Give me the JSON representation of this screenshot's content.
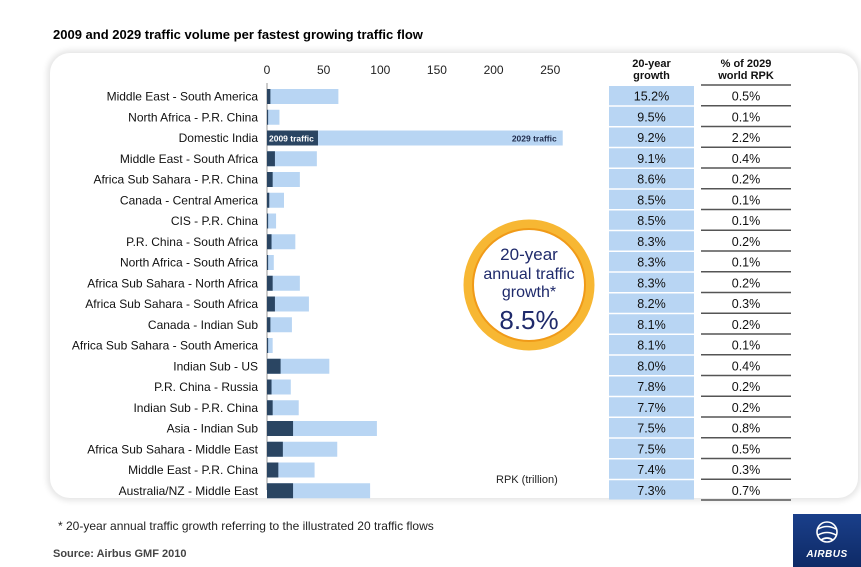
{
  "title": "2009 and 2029 traffic volume per fastest growing traffic flow",
  "footnote": "* 20-year annual traffic growth referring to the illustrated 20 traffic flows",
  "source": "Source: Airbus GMF 2010",
  "logo_text": "AIRBUS",
  "colors": {
    "bar2009": "#2a4562",
    "bar2029": "#b8d5f3",
    "cell": "#b8d5f3",
    "ring": "#f5a623"
  },
  "chart_data": {
    "type": "bar",
    "orientation": "horizontal",
    "x_ticks": [
      0,
      50,
      100,
      150,
      200,
      250
    ],
    "xlim": [
      0,
      260
    ],
    "x_unit_label": "RPK (trillion)",
    "bar_labels": {
      "traffic_2009": "2009 traffic",
      "traffic_2029": "2029 traffic"
    },
    "categories": [
      "Middle East - South America",
      "North Africa - P.R. China",
      "Domestic India",
      "Middle East - South Africa",
      "Africa Sub Sahara - P.R. China",
      "Canada - Central America",
      "CIS - P.R. China",
      "P.R. China - South Africa",
      "North Africa - South Africa",
      "Africa Sub Sahara - North Africa",
      "Africa Sub Sahara - South Africa",
      "Canada - Indian Sub",
      "Africa Sub Sahara - South America",
      "Indian Sub - US",
      "P.R. China - Russia",
      "Indian Sub - P.R. China",
      "Asia - Indian Sub",
      "Africa Sub Sahara - Middle East",
      "Middle East - P.R. China",
      "Australia/NZ - Middle East"
    ],
    "series": [
      {
        "name": "2009 traffic",
        "values": [
          3,
          1,
          45,
          7,
          5,
          2,
          1,
          4,
          1,
          5,
          7,
          3,
          1,
          12,
          4,
          5,
          23,
          14,
          10,
          23
        ]
      },
      {
        "name": "2029 traffic",
        "values": [
          63,
          11,
          261,
          44,
          29,
          15,
          8,
          25,
          6,
          29,
          37,
          22,
          5,
          55,
          21,
          28,
          97,
          62,
          42,
          91
        ]
      }
    ],
    "table": {
      "headers": [
        "20-year growth",
        "% of 2029 world RPK"
      ],
      "growth": [
        "15.2%",
        "9.5%",
        "9.2%",
        "9.1%",
        "8.6%",
        "8.5%",
        "8.5%",
        "8.3%",
        "8.3%",
        "8.3%",
        "8.2%",
        "8.1%",
        "8.1%",
        "8.0%",
        "7.8%",
        "7.7%",
        "7.5%",
        "7.5%",
        "7.4%",
        "7.3%"
      ],
      "share": [
        "0.5%",
        "0.1%",
        "2.2%",
        "0.4%",
        "0.2%",
        "0.1%",
        "0.1%",
        "0.2%",
        "0.1%",
        "0.2%",
        "0.3%",
        "0.2%",
        "0.1%",
        "0.4%",
        "0.2%",
        "0.2%",
        "0.8%",
        "0.5%",
        "0.3%",
        "0.7%"
      ]
    },
    "callout": {
      "line1": "20-year",
      "line2": "annual traffic",
      "line3": "growth*",
      "value": "8.5%"
    }
  }
}
